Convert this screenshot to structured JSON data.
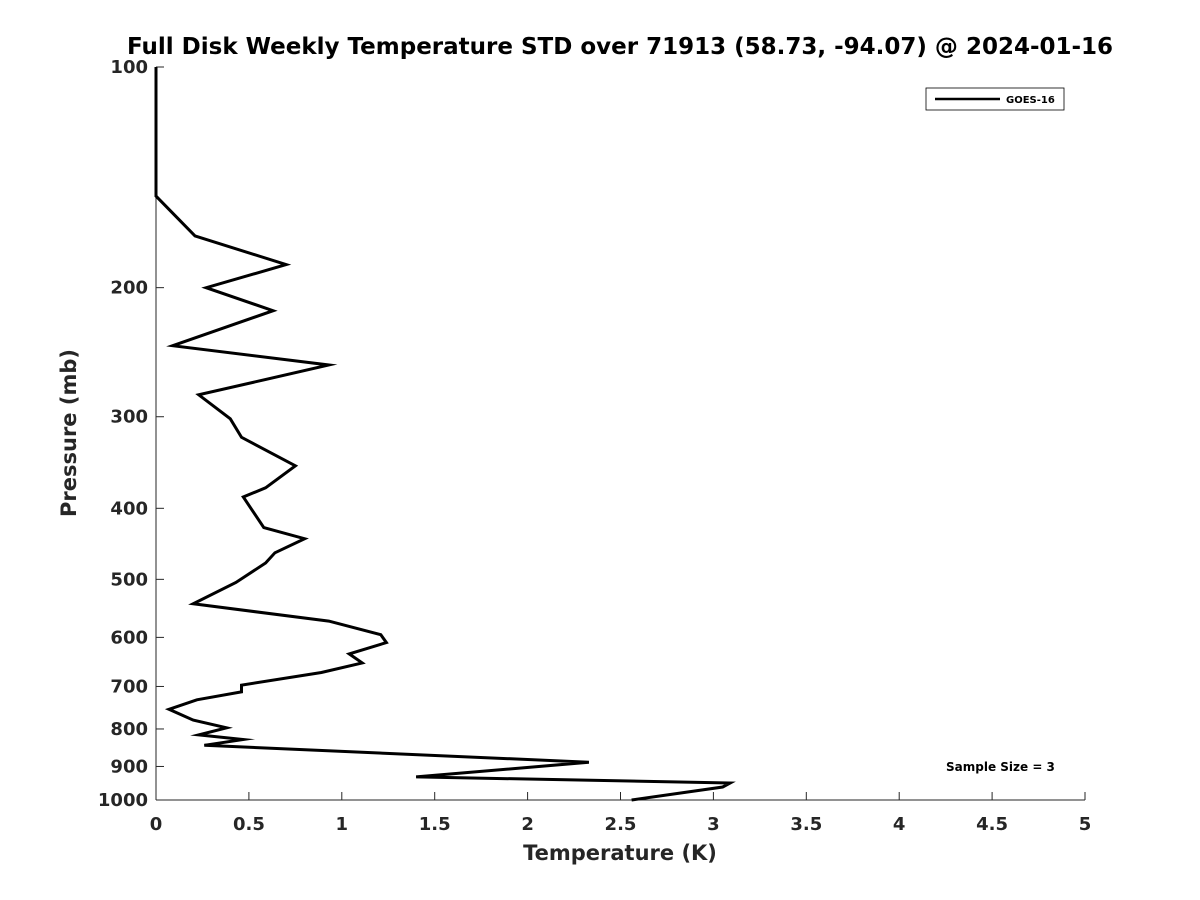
{
  "chart_data": {
    "type": "line",
    "title": "Full Disk Weekly Temperature STD over 71913 (58.73, -94.07) @ 2024-01-16",
    "xlabel": "Temperature (K)",
    "ylabel": "Pressure (mb)",
    "xlim": [
      0,
      5
    ],
    "ylim": [
      100,
      1000
    ],
    "y_scale": "log",
    "y_inverted": true,
    "x_ticks": [
      0,
      0.5,
      1,
      1.5,
      2,
      2.5,
      3,
      3.5,
      4,
      4.5,
      5
    ],
    "x_tick_labels": [
      "0",
      "0.5",
      "1",
      "1.5",
      "2",
      "2.5",
      "3",
      "3.5",
      "4",
      "4.5",
      "5"
    ],
    "y_ticks": [
      100,
      200,
      300,
      400,
      500,
      600,
      700,
      800,
      900,
      1000
    ],
    "y_tick_labels": [
      "100",
      "200",
      "300",
      "400",
      "500",
      "600",
      "700",
      "800",
      "900",
      "1000"
    ],
    "grid": false,
    "legend_position": "top-right",
    "annotation": "Sample Size = 3",
    "series": [
      {
        "name": "GOES-16",
        "color": "#000000",
        "points": [
          [
            0,
            100
          ],
          [
            0,
            150
          ],
          [
            0.21,
            170
          ],
          [
            0.7,
            186
          ],
          [
            0.27,
            200
          ],
          [
            0.63,
            215
          ],
          [
            0.09,
            240
          ],
          [
            0.93,
            255
          ],
          [
            0.23,
            280
          ],
          [
            0.4,
            302
          ],
          [
            0.46,
            320
          ],
          [
            0.75,
            350
          ],
          [
            0.59,
            375
          ],
          [
            0.47,
            386
          ],
          [
            0.58,
            425
          ],
          [
            0.8,
            440
          ],
          [
            0.64,
            460
          ],
          [
            0.59,
            475
          ],
          [
            0.43,
            505
          ],
          [
            0.2,
            540
          ],
          [
            0.93,
            570
          ],
          [
            1.21,
            595
          ],
          [
            1.24,
            610
          ],
          [
            1.04,
            632
          ],
          [
            1.11,
            650
          ],
          [
            0.89,
            670
          ],
          [
            0.46,
            697
          ],
          [
            0.46,
            712
          ],
          [
            0.22,
            730
          ],
          [
            0.07,
            752
          ],
          [
            0.2,
            778
          ],
          [
            0.38,
            797
          ],
          [
            0.23,
            815
          ],
          [
            0.47,
            827
          ],
          [
            0.26,
            842
          ],
          [
            2.33,
            888
          ],
          [
            1.4,
            930
          ],
          [
            3.09,
            948
          ],
          [
            3.05,
            960
          ],
          [
            2.56,
            1000
          ]
        ]
      }
    ]
  }
}
